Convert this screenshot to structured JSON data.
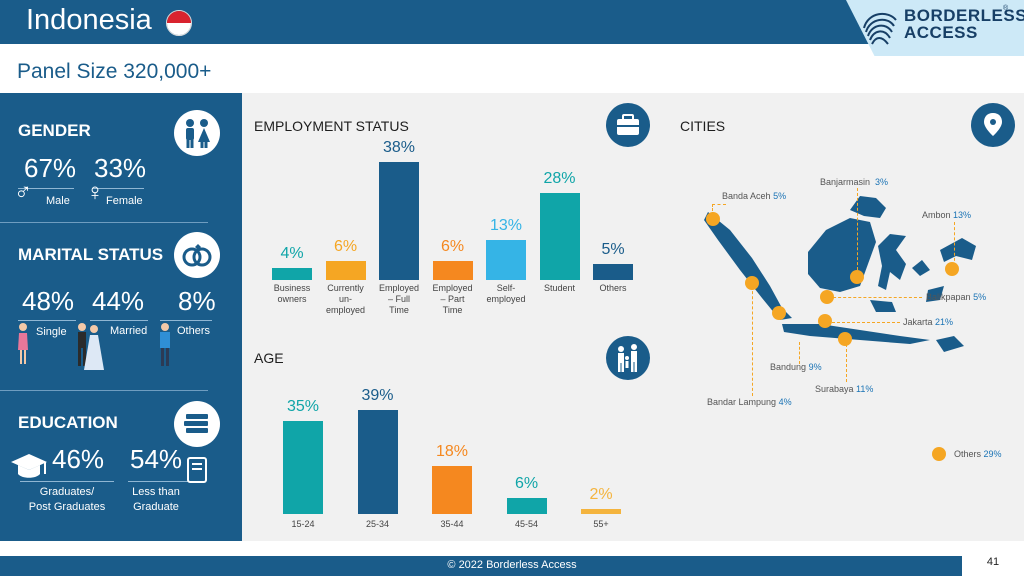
{
  "header": {
    "country": "Indonesia"
  },
  "logo": {
    "line1": "BORDERLESS",
    "line2": "ACCESS",
    "reg": "®"
  },
  "panel_size": "Panel Size 320,000+",
  "gender": {
    "title": "GENDER",
    "male_pct": "67%",
    "female_pct": "33%",
    "male_label": "Male",
    "female_label": "Female",
    "male_symbol": "♂",
    "female_symbol": "♀"
  },
  "marital": {
    "title": "MARITAL STATUS",
    "single_pct": "48%",
    "married_pct": "44%",
    "others_pct": "8%",
    "single_label": "Single",
    "married_label": "Married",
    "others_label": "Others"
  },
  "education": {
    "title": "EDUCATION",
    "grad_pct": "46%",
    "less_pct": "54%",
    "grad_line1": "Graduates/",
    "grad_line2": "Post Graduates",
    "less_line1": "Less than",
    "less_line2": "Graduate"
  },
  "colors": {
    "navy": "#1a5c8a",
    "teal": "#10a5a8",
    "gold": "#f5a623",
    "orange": "#f5881f",
    "sky": "#35b4e6",
    "light_gold": "#f4b43e"
  },
  "employment": {
    "title": "EMPLOYMENT STATUS",
    "icon": "briefcase-icon"
  },
  "age": {
    "title": "AGE",
    "icon": "family-icon"
  },
  "chart_data": [
    {
      "type": "bar",
      "title": "EMPLOYMENT STATUS",
      "categories": [
        [
          "Business",
          "owners"
        ],
        [
          "Currently",
          "un-",
          "employed"
        ],
        [
          "Employed",
          "– Full",
          "Time"
        ],
        [
          "Employed",
          "– Part",
          "Time"
        ],
        [
          "Self-",
          "employed"
        ],
        [
          "Student"
        ],
        [
          "Others"
        ]
      ],
      "values": [
        4,
        6,
        38,
        6,
        13,
        28,
        5
      ],
      "labels": [
        "4%",
        "6%",
        "38%",
        "6%",
        "13%",
        "28%",
        "5%"
      ],
      "colors": [
        "#10a5a8",
        "#f5a623",
        "#1a5c8a",
        "#f5881f",
        "#35b4e6",
        "#10a5a8",
        "#1a5c8a"
      ],
      "ylim": [
        0,
        38
      ]
    },
    {
      "type": "bar",
      "title": "AGE",
      "categories": [
        "15-24",
        "25-34",
        "35-44",
        "45-54",
        "55+"
      ],
      "values": [
        35,
        39,
        18,
        6,
        2
      ],
      "labels": [
        "35%",
        "39%",
        "18%",
        "6%",
        "2%"
      ],
      "colors": [
        "#10a5a8",
        "#1a5c8a",
        "#f5881f",
        "#10a5a8",
        "#f4b43e"
      ],
      "ylim": [
        0,
        39
      ]
    }
  ],
  "cities": {
    "title": "CITIES",
    "icon": "location-pin-icon",
    "items": [
      {
        "name": "Banjarmasin",
        "pct": "3%"
      },
      {
        "name": "Banda Aceh",
        "pct": "5%"
      },
      {
        "name": "Ambon",
        "pct": "13%"
      },
      {
        "name": "Balikpapan",
        "pct": "5%"
      },
      {
        "name": "Jakarta",
        "pct": "21%"
      },
      {
        "name": "Bandung",
        "pct": "9%"
      },
      {
        "name": "Surabaya",
        "pct": "11%"
      },
      {
        "name": "Bandar Lampung",
        "pct": "4%"
      },
      {
        "name": "Others",
        "pct": "29%"
      }
    ]
  },
  "footer": {
    "copyright": "© 2022 Borderless Access",
    "page": "41"
  }
}
